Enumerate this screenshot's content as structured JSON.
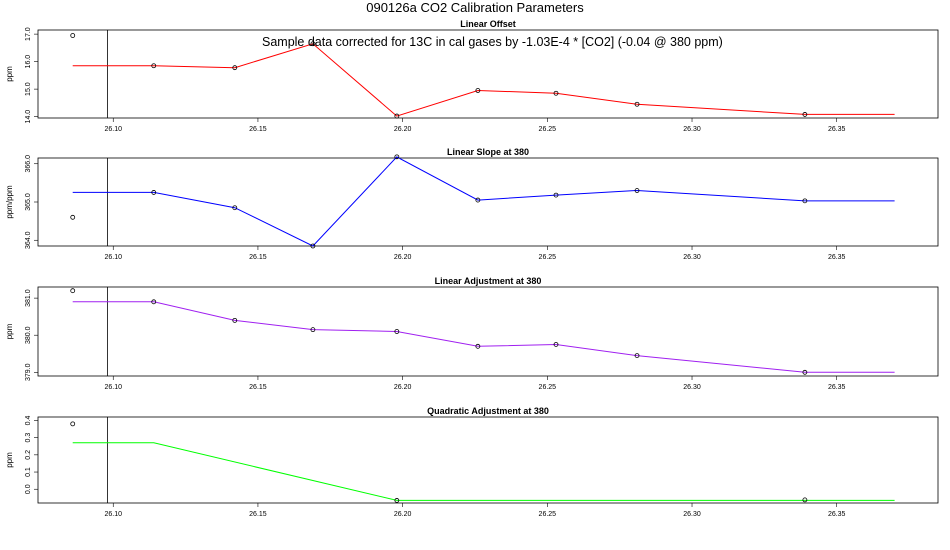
{
  "title": "090126a   CO2 Calibration Parameters",
  "annotation": "Sample data corrected for 13C in cal gases by -1.03E-4 * [CO2] (-0.04 @ 380 ppm)",
  "colors": {
    "offset": "#ff0000",
    "slope": "#0000ff",
    "adjustment": "#a020f0",
    "quadratic": "#00ff00"
  },
  "chart_data": [
    {
      "type": "line",
      "title": "Linear Offset",
      "ylabel": "ppm",
      "xlim": [
        26.074,
        26.385
      ],
      "ylim": [
        13.95,
        17.15
      ],
      "xticks": [
        "26.10",
        "26.15",
        "26.20",
        "26.25",
        "26.30",
        "26.35"
      ],
      "yticks": [
        "14.0",
        "15.0",
        "16.0",
        "17.0"
      ],
      "vline_x": 26.098,
      "color": "offset",
      "line": {
        "x": [
          26.086,
          26.114,
          26.142,
          26.169,
          26.198,
          26.226,
          26.253,
          26.281,
          26.339,
          26.37
        ],
        "y": [
          15.85,
          15.85,
          15.78,
          16.65,
          14.02,
          14.95,
          14.85,
          14.45,
          14.08,
          14.08
        ]
      },
      "points": {
        "x": [
          26.086,
          26.114,
          26.142,
          26.169,
          26.198,
          26.226,
          26.253,
          26.281,
          26.339
        ],
        "y": [
          16.95,
          15.85,
          15.78,
          16.65,
          14.02,
          14.95,
          14.85,
          14.45,
          14.08
        ]
      }
    },
    {
      "type": "line",
      "title": "Linear Slope at 380",
      "ylabel": "ppm/ppm",
      "xlim": [
        26.074,
        26.385
      ],
      "ylim": [
        363.85,
        366.15
      ],
      "xticks": [
        "26.10",
        "26.15",
        "26.20",
        "26.25",
        "26.30",
        "26.35"
      ],
      "yticks": [
        "364.0",
        "365.0",
        "366.0"
      ],
      "vline_x": 26.098,
      "color": "slope",
      "line": {
        "x": [
          26.086,
          26.114,
          26.142,
          26.169,
          26.198,
          26.226,
          26.253,
          26.281,
          26.339,
          26.37
        ],
        "y": [
          365.25,
          365.25,
          364.85,
          363.85,
          366.18,
          365.05,
          365.18,
          365.3,
          365.03,
          365.03
        ]
      },
      "points": {
        "x": [
          26.086,
          26.114,
          26.142,
          26.169,
          26.198,
          26.226,
          26.253,
          26.281,
          26.339
        ],
        "y": [
          364.6,
          365.25,
          364.85,
          363.85,
          366.18,
          365.05,
          365.18,
          365.3,
          365.03
        ]
      }
    },
    {
      "type": "line",
      "title": "Linear Adjustment at 380",
      "ylabel": "ppm",
      "xlim": [
        26.074,
        26.385
      ],
      "ylim": [
        378.9,
        381.3
      ],
      "xticks": [
        "26.10",
        "26.15",
        "26.20",
        "26.25",
        "26.30",
        "26.35"
      ],
      "yticks": [
        "379.0",
        "380.0",
        "381.0"
      ],
      "vline_x": 26.098,
      "color": "adjustment",
      "line": {
        "x": [
          26.086,
          26.114,
          26.142,
          26.169,
          26.198,
          26.226,
          26.253,
          26.281,
          26.339,
          26.37
        ],
        "y": [
          380.9,
          380.9,
          380.4,
          380.15,
          380.1,
          379.7,
          379.75,
          379.45,
          379.0,
          379.0
        ]
      },
      "points": {
        "x": [
          26.086,
          26.114,
          26.142,
          26.169,
          26.198,
          26.226,
          26.253,
          26.281,
          26.339
        ],
        "y": [
          381.2,
          380.9,
          380.4,
          380.15,
          380.1,
          379.7,
          379.75,
          379.45,
          379.0
        ]
      }
    },
    {
      "type": "line",
      "title": "Quadratic Adjustment at 380",
      "ylabel": "ppm",
      "xlim": [
        26.074,
        26.385
      ],
      "ylim": [
        -0.08,
        0.42
      ],
      "xticks": [
        "26.10",
        "26.15",
        "26.20",
        "26.25",
        "26.30",
        "26.35"
      ],
      "yticks": [
        "0.0",
        "0.1",
        "0.2",
        "0.3",
        "0.4"
      ],
      "vline_x": 26.098,
      "color": "quadratic",
      "line": {
        "x": [
          26.086,
          26.114,
          26.198,
          26.339,
          26.37
        ],
        "y": [
          0.27,
          0.27,
          -0.065,
          -0.065,
          -0.065
        ]
      },
      "points": {
        "x": [
          26.086,
          26.198,
          26.339
        ],
        "y": [
          0.38,
          -0.065,
          -0.062
        ]
      }
    }
  ]
}
